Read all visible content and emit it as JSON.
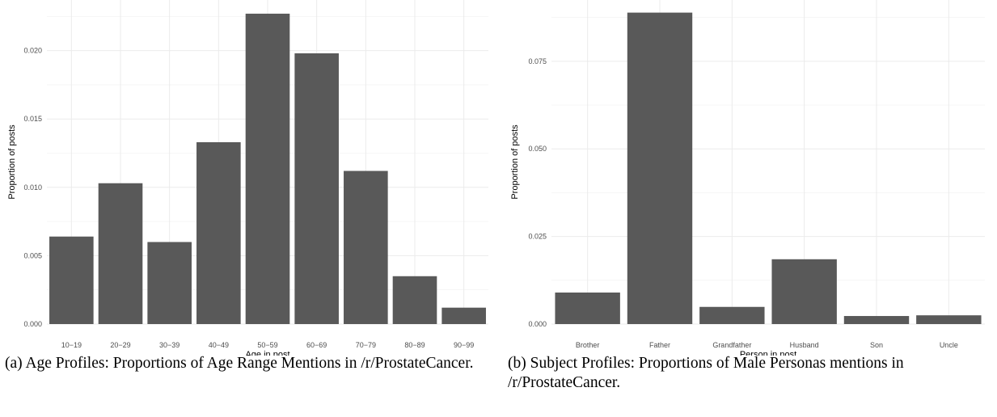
{
  "chart_data": [
    {
      "type": "bar",
      "xlabel": "Age in post",
      "ylabel": "Proportion of posts",
      "categories": [
        "10−19",
        "20−29",
        "30−39",
        "40−49",
        "50−59",
        "60−69",
        "70−79",
        "80−89",
        "90−99"
      ],
      "values": [
        0.0064,
        0.0103,
        0.006,
        0.0133,
        0.0227,
        0.0198,
        0.0112,
        0.0035,
        0.0012
      ],
      "ylim": [
        0,
        0.0237
      ],
      "yticks": [
        "0.000",
        "0.005",
        "0.010",
        "0.015",
        "0.020"
      ],
      "bar_color": "#595959",
      "grid": true,
      "caption": "(a) Age Profiles: Proportions of Age Range Mentions in /r/ProstateCancer."
    },
    {
      "type": "bar",
      "xlabel": "Person in post",
      "ylabel": "Proportion of posts",
      "categories": [
        "Brother",
        "Father",
        "Grandfather",
        "Husband",
        "Son",
        "Uncle"
      ],
      "values": [
        0.009,
        0.0889,
        0.0049,
        0.0185,
        0.0023,
        0.0025
      ],
      "ylim": [
        0,
        0.0925
      ],
      "yticks": [
        "0.000",
        "0.025",
        "0.050",
        "0.075"
      ],
      "bar_color": "#595959",
      "grid": true,
      "caption": "(b) Subject Profiles: Proportions of Male Personas mentions in /r/ProstateCancer."
    }
  ]
}
